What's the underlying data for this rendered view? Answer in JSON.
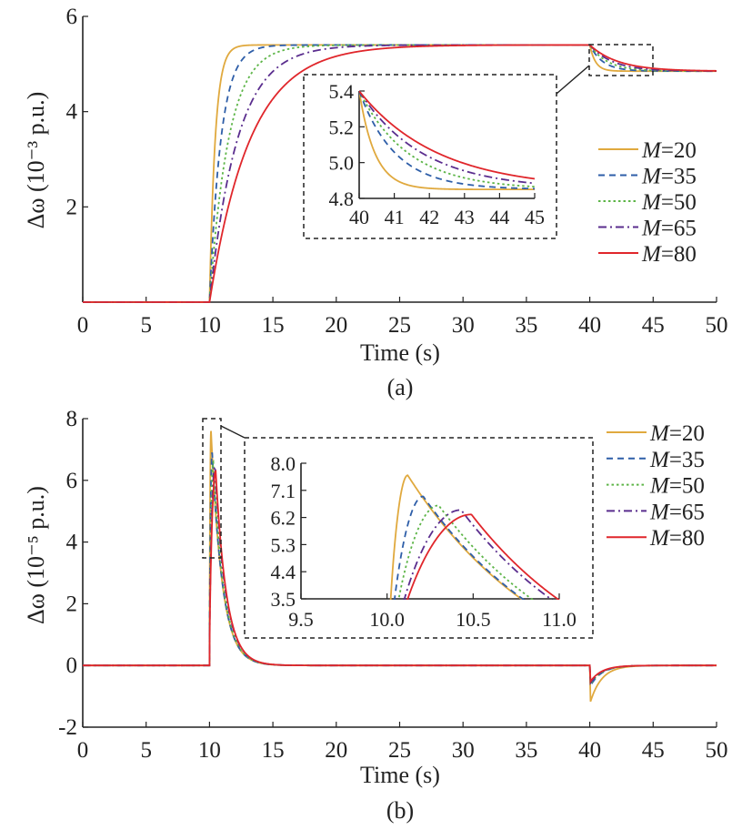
{
  "chart_data": [
    {
      "id": "a",
      "type": "line",
      "panel_label": "(a)",
      "xlabel": "Time (s)",
      "ylabel": "Δω (10⁻³ p.u.)",
      "xlim": [
        0,
        50
      ],
      "ylim": [
        0,
        6
      ],
      "xticks": [
        0,
        5,
        10,
        15,
        20,
        25,
        30,
        35,
        40,
        45,
        50
      ],
      "yticks": [
        2,
        4,
        6
      ],
      "model": "step at t=10 to 5.4 (first-order rise, tau_up), step at t=40 down to 4.85 (tau_down)",
      "levels": {
        "step_time": 10,
        "high": 5.4,
        "drop_time": 40,
        "final": 4.85
      },
      "series": [
        {
          "name": "M=20",
          "M": 20,
          "tau_up": 0.45,
          "tau_down": 0.45
        },
        {
          "name": "M=35",
          "M": 35,
          "tau_up": 0.9,
          "tau_down": 1.03
        },
        {
          "name": "M=50",
          "M": 50,
          "tau_up": 1.5,
          "tau_down": 1.4
        },
        {
          "name": "M=65",
          "M": 65,
          "tau_up": 2.2,
          "tau_down": 1.8
        },
        {
          "name": "M=80",
          "M": 80,
          "tau_up": 3.2,
          "tau_down": 2.25
        }
      ],
      "inset": {
        "xlim": [
          40,
          45
        ],
        "ylim": [
          4.8,
          5.4
        ],
        "xticks": [
          40,
          41,
          42,
          43,
          44,
          45
        ],
        "yticks": [
          "4.8",
          "5.0",
          "5.2",
          "5.4"
        ]
      },
      "legend": "right"
    },
    {
      "id": "b",
      "type": "line",
      "panel_label": "(b)",
      "xlabel": "Time (s)",
      "ylabel": "Δω (10⁻⁵ p.u.)",
      "xlim": [
        0,
        50
      ],
      "ylim": [
        -2,
        8
      ],
      "xticks": [
        0,
        5,
        10,
        15,
        20,
        25,
        30,
        35,
        40,
        45,
        50
      ],
      "yticks": [
        -2,
        0,
        2,
        4,
        6,
        8
      ],
      "model": "pulse at t=10 peaking at (peak_time, peak), decaying with tau 0.85 s; negative dip at t=40",
      "series": [
        {
          "name": "M=20",
          "M": 20,
          "peak_time": 10.12,
          "peak": 7.6,
          "dip": -1.25
        },
        {
          "name": "M=35",
          "M": 35,
          "peak_time": 10.21,
          "peak": 6.9,
          "dip": -0.7
        },
        {
          "name": "M=50",
          "M": 50,
          "peak_time": 10.3,
          "peak": 6.6,
          "dip": -0.65
        },
        {
          "name": "M=65",
          "M": 65,
          "peak_time": 10.43,
          "peak": 6.45,
          "dip": -0.6
        },
        {
          "name": "M=80",
          "M": 80,
          "peak_time": 10.49,
          "peak": 6.3,
          "dip": -0.55
        }
      ],
      "decay_tau": 0.85,
      "inset": {
        "xlim": [
          9.5,
          11.0
        ],
        "ylim": [
          3.5,
          8.0
        ],
        "xticks": [
          "9.5",
          "10.0",
          "10.5",
          "11.0"
        ],
        "yticks": [
          "3.5",
          "4.4",
          "5.3",
          "6.2",
          "7.1",
          "8.0"
        ]
      },
      "legend": "top-right"
    }
  ],
  "styles": [
    {
      "color": "#E0A93E",
      "dash": ""
    },
    {
      "color": "#2E5EA8",
      "dash": "7 5"
    },
    {
      "color": "#5DB548",
      "dash": "2.5 3"
    },
    {
      "color": "#5A2D8E",
      "dash": "9 4 2 4"
    },
    {
      "color": "#E0262B",
      "dash": ""
    }
  ]
}
